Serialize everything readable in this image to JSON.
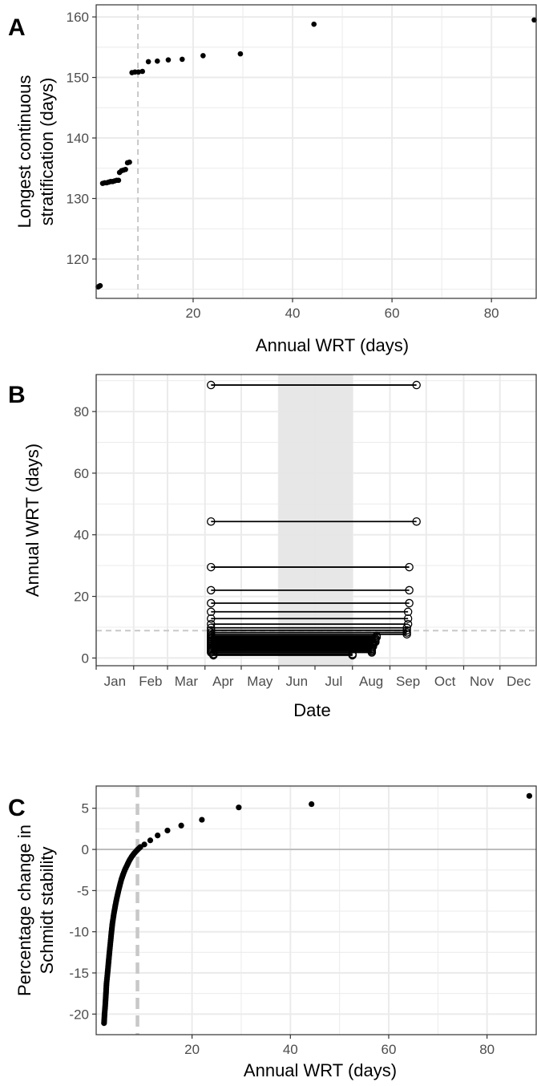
{
  "colors": {
    "point": "#000000",
    "grid": "#ebebeb",
    "reference_line": "#c8c8c8",
    "shade": "#e6e6e6",
    "border": "#333333"
  },
  "chart_data": [
    {
      "panel": "A",
      "type": "scatter",
      "xlabel": "Annual WRT (days)",
      "ylabel": [
        "Longest continuous",
        "stratification (days)"
      ],
      "xlim": [
        0.5,
        89
      ],
      "ylim": [
        113.5,
        162
      ],
      "xticks": [
        20,
        40,
        60,
        80
      ],
      "yticks": [
        120,
        130,
        140,
        150,
        160
      ],
      "vline": 8.9,
      "grid": true,
      "points": [
        [
          0.9,
          115.4
        ],
        [
          1.1,
          115.5
        ],
        [
          1.3,
          115.6
        ],
        [
          1.8,
          132.5
        ],
        [
          2.2,
          132.6
        ],
        [
          2.6,
          132.6
        ],
        [
          3.0,
          132.7
        ],
        [
          3.4,
          132.8
        ],
        [
          3.8,
          132.8
        ],
        [
          4.2,
          132.9
        ],
        [
          4.6,
          133.0
        ],
        [
          5.0,
          133.0
        ],
        [
          5.2,
          134.3
        ],
        [
          5.6,
          134.6
        ],
        [
          6.0,
          134.7
        ],
        [
          6.4,
          134.8
        ],
        [
          6.8,
          135.9
        ],
        [
          7.2,
          136.0
        ],
        [
          7.7,
          150.8
        ],
        [
          8.3,
          150.9
        ],
        [
          9.0,
          150.9
        ],
        [
          9.8,
          151.0
        ],
        [
          11.0,
          152.6
        ],
        [
          12.8,
          152.7
        ],
        [
          15.0,
          152.9
        ],
        [
          17.8,
          153.0
        ],
        [
          22.0,
          153.6
        ],
        [
          29.5,
          153.9
        ],
        [
          44.3,
          158.8
        ],
        [
          88.6,
          159.5
        ]
      ]
    },
    {
      "panel": "B",
      "type": "dumbbell",
      "xlabel": "Date",
      "ylabel": "Annual WRT (days)",
      "month_labels": [
        "Jan",
        "Feb",
        "Mar",
        "Apr",
        "May",
        "Jun",
        "Jul",
        "Aug",
        "Sep",
        "Oct",
        "Nov",
        "Dec"
      ],
      "xlim_day_of_year": [
        1,
        365
      ],
      "ylim": [
        -2.5,
        92
      ],
      "yticks": [
        0,
        20,
        40,
        60,
        80
      ],
      "hline": 8.9,
      "shaded_period": [
        "2011-06-01",
        "2011-08-01"
      ],
      "grid": true,
      "series": [
        {
          "wrt": 88.6,
          "start": "2011-04-06",
          "end": "2011-09-23"
        },
        {
          "wrt": 44.3,
          "start": "2011-04-06",
          "end": "2011-09-23"
        },
        {
          "wrt": 29.5,
          "start": "2011-04-06",
          "end": "2011-09-17"
        },
        {
          "wrt": 22.0,
          "start": "2011-04-06",
          "end": "2011-09-17"
        },
        {
          "wrt": 17.8,
          "start": "2011-04-06",
          "end": "2011-09-17"
        },
        {
          "wrt": 15.0,
          "start": "2011-04-06",
          "end": "2011-09-16"
        },
        {
          "wrt": 12.8,
          "start": "2011-04-06",
          "end": "2011-09-16"
        },
        {
          "wrt": 11.0,
          "start": "2011-04-06",
          "end": "2011-09-16"
        },
        {
          "wrt": 9.8,
          "start": "2011-04-06",
          "end": "2011-09-15"
        },
        {
          "wrt": 9.0,
          "start": "2011-04-06",
          "end": "2011-09-15"
        },
        {
          "wrt": 8.3,
          "start": "2011-04-06",
          "end": "2011-09-15"
        },
        {
          "wrt": 7.7,
          "start": "2011-04-06",
          "end": "2011-09-15"
        },
        {
          "wrt": 7.2,
          "start": "2011-04-06",
          "end": "2011-08-21"
        },
        {
          "wrt": 6.8,
          "start": "2011-04-06",
          "end": "2011-08-21"
        },
        {
          "wrt": 6.4,
          "start": "2011-04-06",
          "end": "2011-08-20"
        },
        {
          "wrt": 6.0,
          "start": "2011-04-06",
          "end": "2011-08-20"
        },
        {
          "wrt": 5.6,
          "start": "2011-04-06",
          "end": "2011-08-20"
        },
        {
          "wrt": 5.2,
          "start": "2011-04-06",
          "end": "2011-08-20"
        },
        {
          "wrt": 5.0,
          "start": "2011-04-06",
          "end": "2011-08-18"
        },
        {
          "wrt": 4.6,
          "start": "2011-04-06",
          "end": "2011-08-18"
        },
        {
          "wrt": 4.2,
          "start": "2011-04-06",
          "end": "2011-08-18"
        },
        {
          "wrt": 3.8,
          "start": "2011-04-06",
          "end": "2011-08-18"
        },
        {
          "wrt": 3.4,
          "start": "2011-04-06",
          "end": "2011-08-17"
        },
        {
          "wrt": 3.0,
          "start": "2011-04-06",
          "end": "2011-08-17"
        },
        {
          "wrt": 2.6,
          "start": "2011-04-06",
          "end": "2011-08-17"
        },
        {
          "wrt": 2.2,
          "start": "2011-04-06",
          "end": "2011-08-17"
        },
        {
          "wrt": 1.8,
          "start": "2011-04-06",
          "end": "2011-08-17"
        },
        {
          "wrt": 1.3,
          "start": "2011-04-08",
          "end": "2011-08-01"
        },
        {
          "wrt": 1.1,
          "start": "2011-04-08",
          "end": "2011-08-01"
        },
        {
          "wrt": 0.9,
          "start": "2011-04-08",
          "end": "2011-08-01"
        }
      ]
    },
    {
      "panel": "C",
      "type": "scatter",
      "xlabel": "Annual WRT (days)",
      "ylabel": [
        "Percentage change in",
        "Schmidt stability"
      ],
      "xlim": [
        0.5,
        90
      ],
      "ylim": [
        -22.5,
        7.7
      ],
      "xticks": [
        20,
        40,
        60,
        80
      ],
      "yticks": [
        5,
        0,
        -5,
        -10,
        -15,
        -20
      ],
      "ytick_labels": [
        "5",
        "0",
        "-5",
        "-10",
        "-15",
        "-20"
      ],
      "vline": 8.9,
      "hline": 0,
      "grid": true,
      "points": [
        [
          88.6,
          6.5
        ],
        [
          44.3,
          5.5
        ],
        [
          29.5,
          5.1
        ],
        [
          22.0,
          3.6
        ],
        [
          17.8,
          2.9
        ],
        [
          15.0,
          2.3
        ],
        [
          13.0,
          1.7
        ],
        [
          11.5,
          1.1
        ],
        [
          10.3,
          0.6
        ],
        [
          9.5,
          0.3
        ],
        [
          8.8,
          -0.1
        ],
        [
          8.2,
          -0.5
        ],
        [
          7.7,
          -0.9
        ],
        [
          7.2,
          -1.4
        ],
        [
          6.8,
          -1.9
        ],
        [
          6.4,
          -2.4
        ],
        [
          6.0,
          -3.0
        ],
        [
          5.6,
          -3.7
        ],
        [
          5.3,
          -4.4
        ],
        [
          5.0,
          -5.1
        ],
        [
          4.7,
          -5.9
        ],
        [
          4.4,
          -6.8
        ],
        [
          4.1,
          -7.8
        ],
        [
          3.8,
          -9.0
        ],
        [
          3.6,
          -10.1
        ],
        [
          3.4,
          -11.3
        ],
        [
          3.2,
          -12.5
        ],
        [
          3.0,
          -13.8
        ],
        [
          2.8,
          -15.1
        ],
        [
          2.6,
          -16.3
        ],
        [
          2.5,
          -17.4
        ],
        [
          2.4,
          -18.4
        ],
        [
          2.3,
          -19.3
        ],
        [
          2.2,
          -20.0
        ],
        [
          2.15,
          -20.6
        ],
        [
          2.1,
          -21.1
        ]
      ]
    }
  ]
}
